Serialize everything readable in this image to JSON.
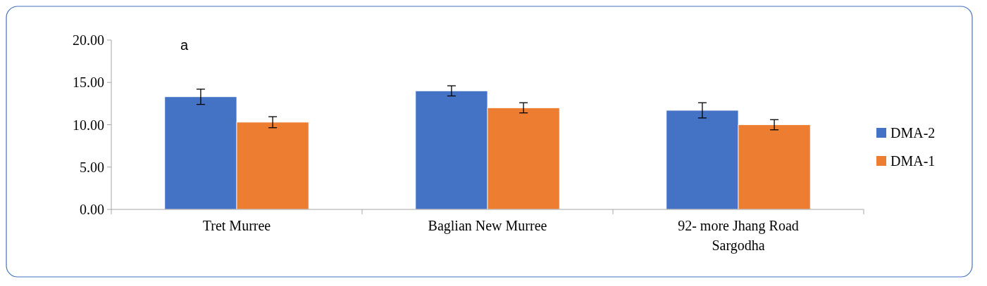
{
  "chart_data": {
    "type": "bar",
    "categories": [
      "Tret Murree",
      "Baglian  New Murree",
      "92- more Jhang Road Sargodha"
    ],
    "series": [
      {
        "name": "DMA-2",
        "color": "#4472c4",
        "values": [
          13.3,
          14.0,
          11.7
        ],
        "errors": [
          0.9,
          0.6,
          0.9
        ]
      },
      {
        "name": "DMA-1",
        "color": "#ed7d31",
        "values": [
          10.3,
          12.0,
          10.0
        ],
        "errors": [
          0.65,
          0.6,
          0.6
        ]
      }
    ],
    "ylim": [
      0,
      20
    ],
    "yticks": [
      {
        "value": 0,
        "label": "0.00"
      },
      {
        "value": 5,
        "label": "5.00"
      },
      {
        "value": 10,
        "label": "10.00"
      },
      {
        "value": 15,
        "label": "15.00"
      },
      {
        "value": 20,
        "label": "20.00"
      }
    ],
    "annotations": [
      "a"
    ],
    "legend": "right",
    "grid": false
  }
}
